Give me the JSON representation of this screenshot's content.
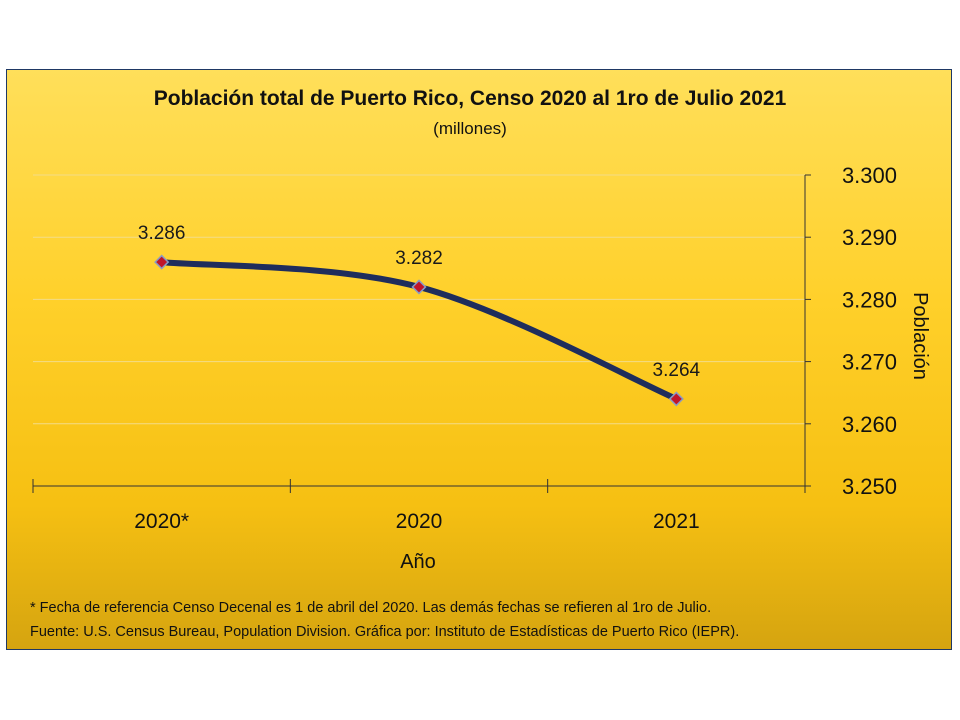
{
  "chart_data": {
    "type": "line",
    "title": "Población total de Puerto Rico, Censo 2020 al 1ro de Julio 2021",
    "subtitle": "(millones)",
    "categories": [
      "2020*",
      "2020",
      "2021"
    ],
    "series": [
      {
        "values": [
          3.286,
          3.282,
          3.264
        ]
      }
    ],
    "data_labels": [
      "3.286",
      "3.282",
      "3.264"
    ],
    "xlabel": "Año",
    "ylabel": "Población",
    "ylim": [
      3.25,
      3.3
    ],
    "yticks": [
      "3.250",
      "3.260",
      "3.270",
      "3.280",
      "3.290",
      "3.300"
    ],
    "y_axis_position": "right",
    "grid": true,
    "legend": "none",
    "footnotes": [
      "* Fecha de referencia Censo Decenal es 1 de abril del 2020. Las demás fechas se refieren al 1ro de Julio.",
      "Fuente: U.S. Census Bureau, Population Division. Gráfica por: Instituto de Estadísticas de Puerto Rico (IEPR)."
    ],
    "colors": {
      "line": "#1f2d5c",
      "marker": "#c0152a",
      "marker_edge": "#8a9bc4",
      "grid": "#f3dc88",
      "frame": "#1f3864"
    }
  }
}
